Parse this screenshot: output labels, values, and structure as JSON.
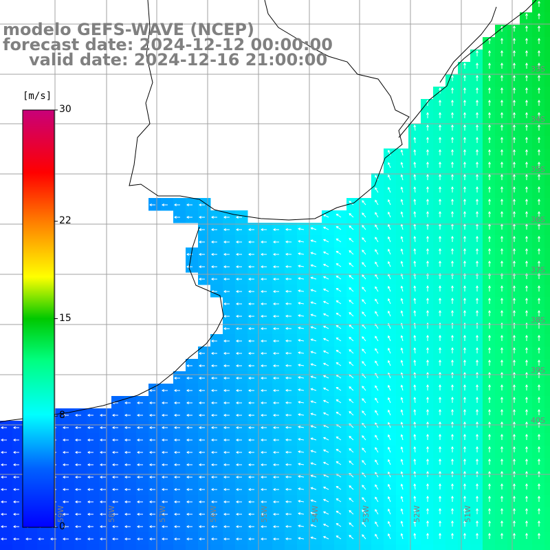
{
  "title": {
    "line1": "modelo GEFS-WAVE (NCEP)",
    "line2": "forecast date: 2024-12-12 00:00:00",
    "line3": "valid date: 2024-12-16 21:00:00"
  },
  "colorbar": {
    "unit": "[m/s]",
    "ticks": [
      {
        "label": "30",
        "value": 30
      },
      {
        "label": "22",
        "value": 22
      },
      {
        "label": "15",
        "value": 15
      },
      {
        "label": "8",
        "value": 8
      },
      {
        "label": "0",
        "value": 0
      }
    ],
    "range": [
      0,
      30
    ],
    "colors": [
      "#0000ff",
      "#00c8ff",
      "#00ffff",
      "#00ff00",
      "#ffff00",
      "#ff8000",
      "#ff0000",
      "#c80078"
    ]
  },
  "map": {
    "lat_labels": [
      "33S",
      "34S",
      "35S",
      "36S",
      "37S",
      "38S",
      "39S",
      "40S"
    ],
    "lon_labels": [
      "59W",
      "58W",
      "57W",
      "56W",
      "55W",
      "54W",
      "53W",
      "52W",
      "51W"
    ],
    "gridline_color": "#a0a0a0",
    "coast_color": "#000000",
    "arrow_color": "#ffffff"
  }
}
